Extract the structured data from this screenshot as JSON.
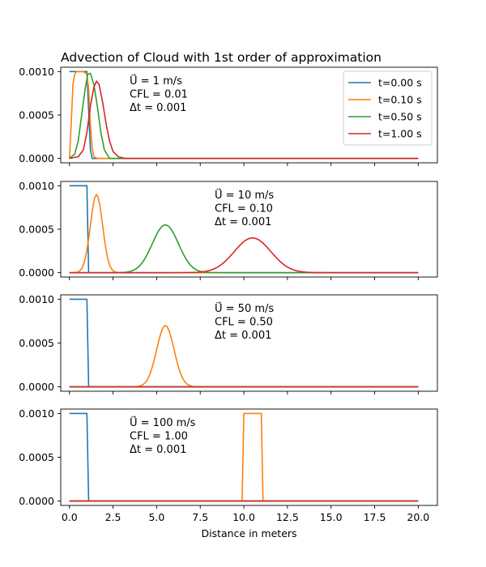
{
  "title": "Advection of Cloud with 1st order of approximation",
  "xlabel": "Distance in meters",
  "colors": {
    "t=0.00 s": "#1f77b4",
    "t=0.10 s": "#ff7f0e",
    "t=0.50 s": "#2ca02c",
    "t=1.00 s": "#d62728"
  },
  "legend": [
    {
      "label": "t=0.00 s",
      "color": "#1f77b4"
    },
    {
      "label": "t=0.10 s",
      "color": "#ff7f0e"
    },
    {
      "label": "t=0.50 s",
      "color": "#2ca02c"
    },
    {
      "label": "t=1.00 s",
      "color": "#d62728"
    }
  ],
  "chart_data": [
    {
      "type": "line",
      "title": "Advection of Cloud with 1st order of approximation",
      "xlabel": "",
      "ylabel": "",
      "xlim": [
        -0.5,
        21.1
      ],
      "ylim": [
        -5e-05,
        0.00105
      ],
      "xticks": [
        "0.0",
        "2.5",
        "5.0",
        "7.5",
        "10.0",
        "12.5",
        "15.0",
        "17.5",
        "20.0"
      ],
      "yticks": [
        "0.0000",
        "0.0005",
        "0.0010"
      ],
      "legend_position": "top-right",
      "annotation": [
        "U⃗ = 1 m/s",
        "CFL = 0.01",
        "Δt = 0.001"
      ],
      "series": [
        {
          "name": "t=0.00 s",
          "x": [
            0,
            1.0,
            1.2,
            1.3,
            20
          ],
          "y": [
            0.001,
            0.001,
            0.0001,
            0,
            0
          ]
        },
        {
          "name": "t=0.10 s",
          "x": [
            0,
            0.1,
            0.2,
            0.3,
            0.4,
            0.6,
            0.8,
            1.0,
            1.1,
            1.2,
            1.3,
            1.4,
            1.6,
            20
          ],
          "y": [
            0,
            0.0004,
            0.00085,
            0.00097,
            0.001,
            0.001,
            0.001,
            0.00097,
            0.0008,
            0.0004,
            0.00012,
            2e-05,
            0,
            0
          ]
        },
        {
          "name": "t=0.50 s",
          "x": [
            0,
            0.3,
            0.5,
            0.7,
            0.9,
            1.05,
            1.2,
            1.4,
            1.6,
            1.8,
            2.0,
            2.3,
            20
          ],
          "y": [
            0,
            5e-05,
            0.0002,
            0.0005,
            0.0008,
            0.00097,
            0.00098,
            0.00085,
            0.0006,
            0.0003,
            0.0001,
            0,
            0
          ]
        },
        {
          "name": "t=1.00 s",
          "x": [
            0,
            0.5,
            0.8,
            1.0,
            1.2,
            1.4,
            1.55,
            1.7,
            1.9,
            2.1,
            2.3,
            2.5,
            2.8,
            3.2,
            20
          ],
          "y": [
            0,
            2e-05,
            0.0001,
            0.0003,
            0.0006,
            0.00082,
            0.00089,
            0.00085,
            0.00065,
            0.0004,
            0.0002,
            8e-05,
            2e-05,
            0,
            0
          ]
        }
      ]
    },
    {
      "type": "line",
      "xlabel": "",
      "ylabel": "",
      "xlim": [
        -0.5,
        21.1
      ],
      "ylim": [
        -5e-05,
        0.00105
      ],
      "xticks": [
        "0.0",
        "2.5",
        "5.0",
        "7.5",
        "10.0",
        "12.5",
        "15.0",
        "17.5",
        "20.0"
      ],
      "yticks": [
        "0.0000",
        "0.0005",
        "0.0010"
      ],
      "annotation": [
        "U⃗ = 10 m/s",
        "CFL = 0.10",
        "Δt = 0.001"
      ],
      "series": [
        {
          "name": "t=0.00 s",
          "x": [
            0,
            1.0,
            1.1,
            20
          ],
          "y": [
            0.001,
            0.001,
            0,
            0
          ]
        },
        {
          "name": "t=0.10 s",
          "gauss": {
            "mu": 1.55,
            "sigma": 0.35,
            "amp": 0.0009,
            "x0": 0,
            "x1": 20
          }
        },
        {
          "name": "t=0.50 s",
          "gauss": {
            "mu": 5.5,
            "sigma": 0.75,
            "amp": 0.00055,
            "x0": 0,
            "x1": 20
          }
        },
        {
          "name": "t=1.00 s",
          "gauss": {
            "mu": 10.5,
            "sigma": 1.05,
            "amp": 0.0004,
            "x0": 0,
            "x1": 20
          }
        }
      ]
    },
    {
      "type": "line",
      "xlabel": "",
      "ylabel": "",
      "xlim": [
        -0.5,
        21.1
      ],
      "ylim": [
        -5e-05,
        0.00105
      ],
      "xticks": [
        "0.0",
        "2.5",
        "5.0",
        "7.5",
        "10.0",
        "12.5",
        "15.0",
        "17.5",
        "20.0"
      ],
      "yticks": [
        "0.0000",
        "0.0005",
        "0.0010"
      ],
      "annotation": [
        "U⃗ = 50 m/s",
        "CFL = 0.50",
        "Δt = 0.001"
      ],
      "series": [
        {
          "name": "t=0.00 s",
          "x": [
            0,
            1.0,
            1.1,
            20
          ],
          "y": [
            0.001,
            0.001,
            0,
            0
          ]
        },
        {
          "name": "t=0.10 s",
          "gauss": {
            "mu": 5.5,
            "sigma": 0.5,
            "amp": 0.0007,
            "x0": 0,
            "x1": 20
          }
        },
        {
          "name": "t=0.50 s",
          "x": [
            0,
            20
          ],
          "y": [
            0,
            0
          ]
        },
        {
          "name": "t=1.00 s",
          "x": [
            0,
            20
          ],
          "y": [
            0,
            0
          ]
        }
      ]
    },
    {
      "type": "line",
      "xlabel": "Distance in meters",
      "ylabel": "",
      "xlim": [
        -0.5,
        21.1
      ],
      "ylim": [
        -5e-05,
        0.00105
      ],
      "xticks": [
        "0.0",
        "2.5",
        "5.0",
        "7.5",
        "10.0",
        "12.5",
        "15.0",
        "17.5",
        "20.0"
      ],
      "yticks": [
        "0.0000",
        "0.0005",
        "0.0010"
      ],
      "annotation": [
        "U⃗ = 100 m/s",
        "CFL = 1.00",
        "Δt = 0.001"
      ],
      "series": [
        {
          "name": "t=0.00 s",
          "x": [
            0,
            1.0,
            1.1,
            20
          ],
          "y": [
            0.001,
            0.001,
            0,
            0
          ]
        },
        {
          "name": "t=0.10 s",
          "x": [
            0,
            9.9,
            10.0,
            11.0,
            11.1,
            20
          ],
          "y": [
            0,
            0,
            0.001,
            0.001,
            0,
            0
          ]
        },
        {
          "name": "t=0.50 s",
          "x": [
            0,
            20
          ],
          "y": [
            0,
            0
          ]
        },
        {
          "name": "t=1.00 s",
          "x": [
            0,
            20
          ],
          "y": [
            0,
            0
          ]
        }
      ]
    }
  ]
}
